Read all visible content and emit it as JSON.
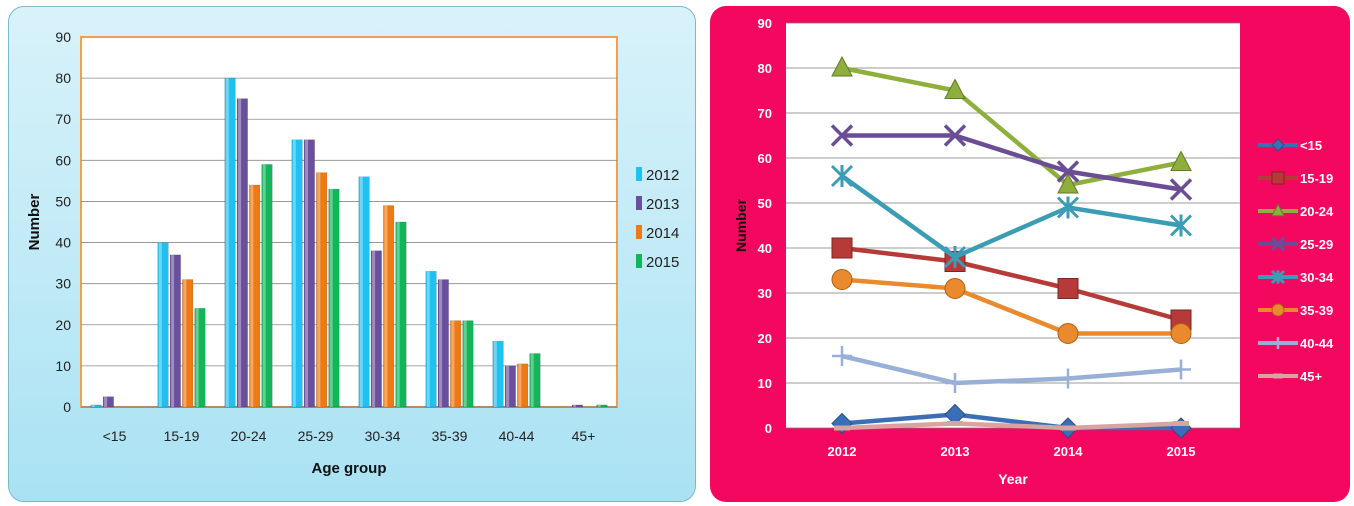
{
  "chart_data": [
    {
      "type": "bar",
      "title": "",
      "xlabel": "Age group",
      "ylabel": "Number",
      "ylim": [
        0,
        90
      ],
      "yticks": [
        0,
        10,
        20,
        30,
        40,
        50,
        60,
        70,
        80,
        90
      ],
      "categories": [
        "<15",
        "15-19",
        "20-24",
        "25-29",
        "30-34",
        "35-39",
        "40-44",
        "45+"
      ],
      "series": [
        {
          "name": "2012",
          "color": "#1fc0f2",
          "values": [
            0.5,
            40,
            80,
            65,
            56,
            33,
            16,
            0
          ]
        },
        {
          "name": "2013",
          "color": "#6a4f9e",
          "values": [
            2.5,
            37,
            75,
            65,
            38,
            31,
            10,
            0.5
          ]
        },
        {
          "name": "2014",
          "color": "#ef7a13",
          "values": [
            0,
            31,
            54,
            57,
            49,
            21,
            10.5,
            0
          ]
        },
        {
          "name": "2015",
          "color": "#12b55a",
          "values": [
            0,
            24,
            59,
            53,
            45,
            21,
            13,
            0.5
          ]
        }
      ],
      "legend_position": "right",
      "grid": true
    },
    {
      "type": "line",
      "title": "",
      "xlabel": "Year",
      "ylabel": "Number",
      "ylim": [
        0,
        90
      ],
      "yticks": [
        0,
        10,
        20,
        30,
        40,
        50,
        60,
        70,
        80,
        90
      ],
      "x": [
        "2012",
        "2013",
        "2014",
        "2015"
      ],
      "series": [
        {
          "name": "<15",
          "color": "#3a6fb7",
          "marker": "diamond",
          "values": [
            1,
            3,
            0,
            0
          ]
        },
        {
          "name": "15-19",
          "color": "#b53a38",
          "marker": "square",
          "values": [
            40,
            37,
            31,
            24
          ]
        },
        {
          "name": "20-24",
          "color": "#8faf3c",
          "marker": "triangle",
          "values": [
            80,
            75,
            54,
            59
          ]
        },
        {
          "name": "25-29",
          "color": "#6b4d96",
          "marker": "x",
          "values": [
            65,
            65,
            57,
            53
          ]
        },
        {
          "name": "30-34",
          "color": "#3a9db5",
          "marker": "star",
          "values": [
            56,
            38,
            49,
            45
          ]
        },
        {
          "name": "35-39",
          "color": "#ea8a2e",
          "marker": "circle",
          "values": [
            33,
            31,
            21,
            21
          ]
        },
        {
          "name": "40-44",
          "color": "#98b0d8",
          "marker": "plus",
          "values": [
            16,
            10,
            11,
            13
          ]
        },
        {
          "name": "45+",
          "color": "#d9a3a1",
          "marker": "dash",
          "values": [
            0,
            1,
            0,
            1
          ]
        }
      ],
      "legend_position": "right",
      "grid": true
    }
  ]
}
